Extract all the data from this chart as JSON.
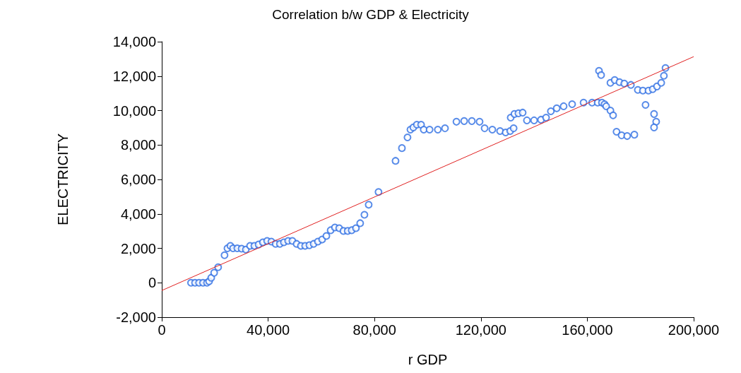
{
  "chart_data": {
    "type": "scatter",
    "title": "Correlation b/w GDP & Electricity",
    "xlabel": "r GDP",
    "ylabel": "ELECTRICITY",
    "xlim": [
      0,
      200000
    ],
    "xticks": [
      0,
      {
        "value": 40000,
        "label": "40,000"
      },
      {
        "value": 80000,
        "label": "80,000"
      },
      {
        "value": 120000,
        "label": "120,000"
      },
      {
        "value": 160000,
        "label": "160,000"
      },
      {
        "value": 200000,
        "label": "200,000"
      }
    ],
    "ylim": [
      -2000,
      14000
    ],
    "yticks": [
      {
        "value": -2000,
        "label": "-2,000"
      },
      0,
      {
        "value": 2000,
        "label": "2,000"
      },
      {
        "value": 4000,
        "label": "4,000"
      },
      {
        "value": 6000,
        "label": "6,000"
      },
      {
        "value": 8000,
        "label": "8,000"
      },
      {
        "value": 10000,
        "label": "10,000"
      },
      {
        "value": 12000,
        "label": "12,000"
      },
      {
        "value": 14000,
        "label": "14,000"
      }
    ],
    "grid": false,
    "series": [
      {
        "color": "#2f6fe4",
        "marker": "circle",
        "x": [
          11000,
          12500,
          14000,
          15500,
          17000,
          17800,
          18600,
          19700,
          21200,
          23600,
          24700,
          25800,
          26800,
          28400,
          30000,
          31600,
          33200,
          34800,
          36400,
          38000,
          39600,
          41200,
          42800,
          44400,
          45900,
          47500,
          49100,
          50700,
          52300,
          53900,
          55500,
          57100,
          58700,
          60300,
          61900,
          63500,
          65100,
          66700,
          68300,
          69900,
          71400,
          73000,
          74600,
          76200,
          77800,
          81500,
          87900,
          90300,
          92400,
          93500,
          94600,
          95900,
          97500,
          98500,
          100700,
          103800,
          106500,
          110800,
          113700,
          116600,
          119500,
          121400,
          124300,
          127200,
          129300,
          131000,
          132300,
          131200,
          132600,
          134100,
          135700,
          137300,
          140000,
          142600,
          144500,
          146300,
          148500,
          151100,
          154300,
          158600,
          161800,
          163900,
          164400,
          165200,
          165500,
          166500,
          167100,
          168700,
          169700,
          168700,
          170300,
          172100,
          173900,
          176400,
          171000,
          172900,
          175000,
          177700,
          179000,
          180900,
          183000,
          184600,
          186200,
          187800,
          188800,
          189400,
          181900,
          185100,
          185900,
          185100
        ],
        "values": [
          0,
          0,
          0,
          0,
          0,
          80,
          290,
          580,
          900,
          1600,
          2000,
          2140,
          2000,
          2000,
          1980,
          1930,
          2140,
          2140,
          2220,
          2350,
          2430,
          2390,
          2260,
          2260,
          2350,
          2430,
          2430,
          2260,
          2140,
          2140,
          2180,
          2260,
          2390,
          2510,
          2720,
          3050,
          3210,
          3170,
          3010,
          3010,
          3050,
          3170,
          3460,
          3950,
          4530,
          5270,
          7080,
          7820,
          8440,
          8890,
          9020,
          9180,
          9180,
          8890,
          8890,
          8890,
          8970,
          9350,
          9390,
          9390,
          9350,
          8970,
          8890,
          8810,
          8730,
          8810,
          8970,
          9590,
          9800,
          9840,
          9880,
          9430,
          9430,
          9470,
          9590,
          9960,
          10130,
          10250,
          10370,
          10460,
          10460,
          10460,
          12310,
          12060,
          10460,
          10370,
          10250,
          10000,
          9720,
          11610,
          11770,
          11650,
          11570,
          11490,
          8770,
          8560,
          8520,
          8600,
          11200,
          11160,
          11160,
          11240,
          11400,
          11610,
          12020,
          12470,
          10330,
          9800,
          9350,
          9020
        ]
      },
      {
        "type": "line",
        "color": "#e02020",
        "marker": "none",
        "x": [
          0,
          200000
        ],
        "values": [
          -450,
          13130
        ]
      }
    ]
  }
}
